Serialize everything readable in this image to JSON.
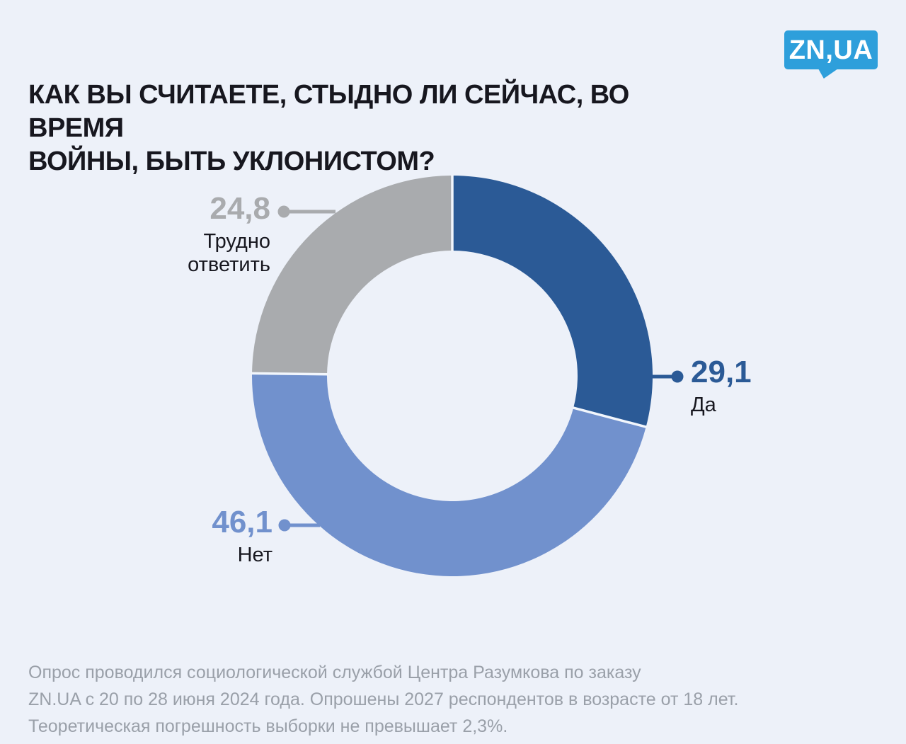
{
  "page": {
    "background": "#edf1f9"
  },
  "logo": {
    "text": "ZN,UA",
    "color": "#2e9fdb",
    "text_color": "#ffffff"
  },
  "title": "КАК ВЫ СЧИТАЕТЕ, СТЫДНО ЛИ СЕЙЧАС, ВО ВРЕМЯ\nВОЙНЫ, БЫТЬ УКЛОНИСТОМ?",
  "chart_data": {
    "type": "pie",
    "subtype": "donut",
    "title": "КАК ВЫ СЧИТАЕТЕ, СТЫДНО ЛИ СЕЙЧАС, ВО ВРЕМЯ ВОЙНЫ, БЫТЬ УКЛОНИСТОМ?",
    "unit": "percent",
    "start_angle_deg": 0,
    "direction": "clockwise",
    "separator_color": "#f2f6fc",
    "slices": [
      {
        "label": "Да",
        "value": 29.1,
        "value_label": "29,1",
        "color": "#2b5a96"
      },
      {
        "label": "Нет",
        "value": 46.1,
        "value_label": "46,1",
        "color": "#7191cd"
      },
      {
        "label": "Трудно ответить",
        "value": 24.8,
        "value_label": "24,8",
        "color": "#a9abae"
      }
    ]
  },
  "footer": "Опрос проводился социологической службой Центра Разумкова по заказу\nZN.UA с 20 по 28 июня 2024 года. Опрошены 2027 респондентов в возрасте от 18 лет.\nТеоретическая погрешность выборки не превышает 2,3%."
}
